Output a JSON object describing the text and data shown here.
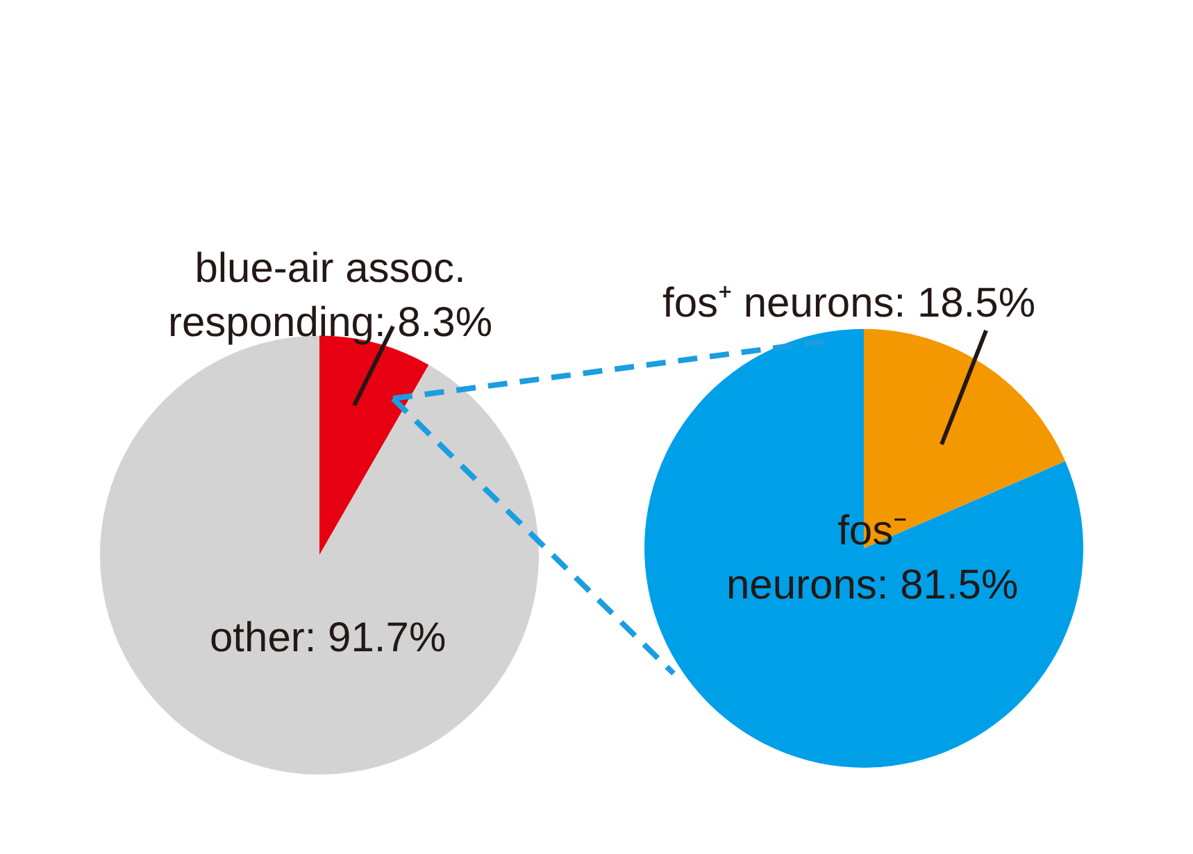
{
  "chart_data": [
    {
      "type": "pie",
      "categories": [
        "blue-air assoc.\nresponding: 8.3%",
        "other: 91.7%"
      ],
      "values": [
        8.3,
        91.7
      ],
      "colors": [
        "#e60012",
        "#d3d3d3"
      ]
    },
    {
      "type": "pie",
      "categories": [
        "fos⁺ neurons: 18.5%",
        "fos⁻\nneurons: 81.5%"
      ],
      "values": [
        18.5,
        81.5
      ],
      "colors": [
        "#f39800",
        "#00a0e9"
      ]
    }
  ]
}
